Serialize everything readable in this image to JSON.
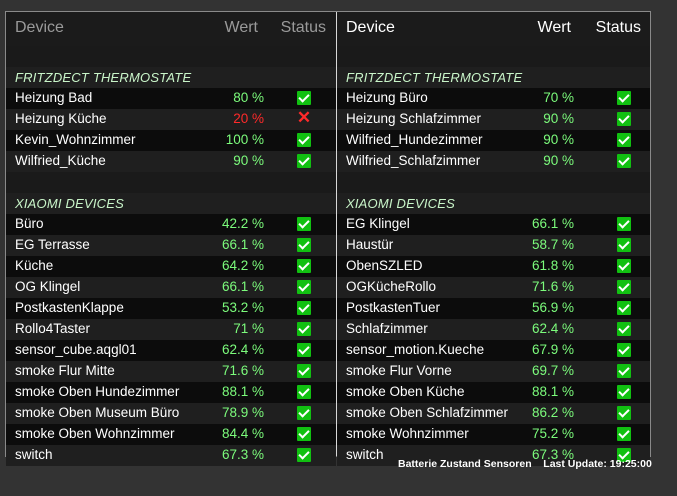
{
  "headers": {
    "left": {
      "device": "Device",
      "wert": "Wert",
      "status": "Status"
    },
    "right": {
      "device": "Device",
      "wert": "Wert",
      "status": "Status"
    }
  },
  "sections": {
    "fritz": "FRITZDECT THERMOSTATE",
    "xiaomi": "XIAOMI DEVICES"
  },
  "left": {
    "fritz": [
      {
        "name": "Heizung Bad",
        "value": "80 %",
        "status": "ok"
      },
      {
        "name": "Heizung Küche",
        "value": "20 %",
        "status": "error"
      },
      {
        "name": "Kevin_Wohnzimmer",
        "value": "100 %",
        "status": "ok"
      },
      {
        "name": "Wilfried_Küche",
        "value": "90 %",
        "status": "ok"
      }
    ],
    "xiaomi": [
      {
        "name": "Büro",
        "value": "42.2 %",
        "status": "ok"
      },
      {
        "name": "EG Terrasse",
        "value": "66.1 %",
        "status": "ok"
      },
      {
        "name": "Küche",
        "value": "64.2 %",
        "status": "ok"
      },
      {
        "name": "OG Klingel",
        "value": "66.1 %",
        "status": "ok"
      },
      {
        "name": "PostkastenKlappe",
        "value": "53.2 %",
        "status": "ok"
      },
      {
        "name": "Rollo4Taster",
        "value": "71 %",
        "status": "ok"
      },
      {
        "name": "sensor_cube.aqgl01",
        "value": "62.4 %",
        "status": "ok"
      },
      {
        "name": "smoke Flur Mitte",
        "value": "71.6 %",
        "status": "ok"
      },
      {
        "name": "smoke Oben Hundezimmer",
        "value": "88.1 %",
        "status": "ok"
      },
      {
        "name": "smoke Oben Museum Büro",
        "value": "78.9 %",
        "status": "ok"
      },
      {
        "name": "smoke Oben Wohnzimmer",
        "value": "84.4 %",
        "status": "ok"
      },
      {
        "name": "switch",
        "value": "67.3 %",
        "status": "ok"
      }
    ]
  },
  "right": {
    "fritz": [
      {
        "name": "Heizung Büro",
        "value": "70 %",
        "status": "ok"
      },
      {
        "name": "Heizung Schlafzimmer",
        "value": "90 %",
        "status": "ok"
      },
      {
        "name": "Wilfried_Hundezimmer",
        "value": "90 %",
        "status": "ok"
      },
      {
        "name": "Wilfried_Schlafzimmer",
        "value": "90 %",
        "status": "ok"
      }
    ],
    "xiaomi": [
      {
        "name": "EG Klingel",
        "value": "66.1 %",
        "status": "ok"
      },
      {
        "name": "Haustür",
        "value": "58.7 %",
        "status": "ok"
      },
      {
        "name": "ObenSZLED",
        "value": "61.8 %",
        "status": "ok"
      },
      {
        "name": "OGKücheRollo",
        "value": "71.6 %",
        "status": "ok"
      },
      {
        "name": "PostkastenTuer",
        "value": "56.9 %",
        "status": "ok"
      },
      {
        "name": "Schlafzimmer",
        "value": "62.4 %",
        "status": "ok"
      },
      {
        "name": "sensor_motion.Kueche",
        "value": "67.9 %",
        "status": "ok"
      },
      {
        "name": "smoke Flur Vorne",
        "value": "69.7 %",
        "status": "ok"
      },
      {
        "name": "smoke Oben Küche",
        "value": "88.1 %",
        "status": "ok"
      },
      {
        "name": "smoke Oben Schlafzimmer",
        "value": "86.2 %",
        "status": "ok"
      },
      {
        "name": "smoke Wohnzimmer",
        "value": "75.2 %",
        "status": "ok"
      },
      {
        "name": "switch",
        "value": "67.3 %",
        "status": "ok"
      }
    ]
  },
  "footer": {
    "text": "Batterie Zustand Sensoren    Last Update: 19:25:00"
  }
}
